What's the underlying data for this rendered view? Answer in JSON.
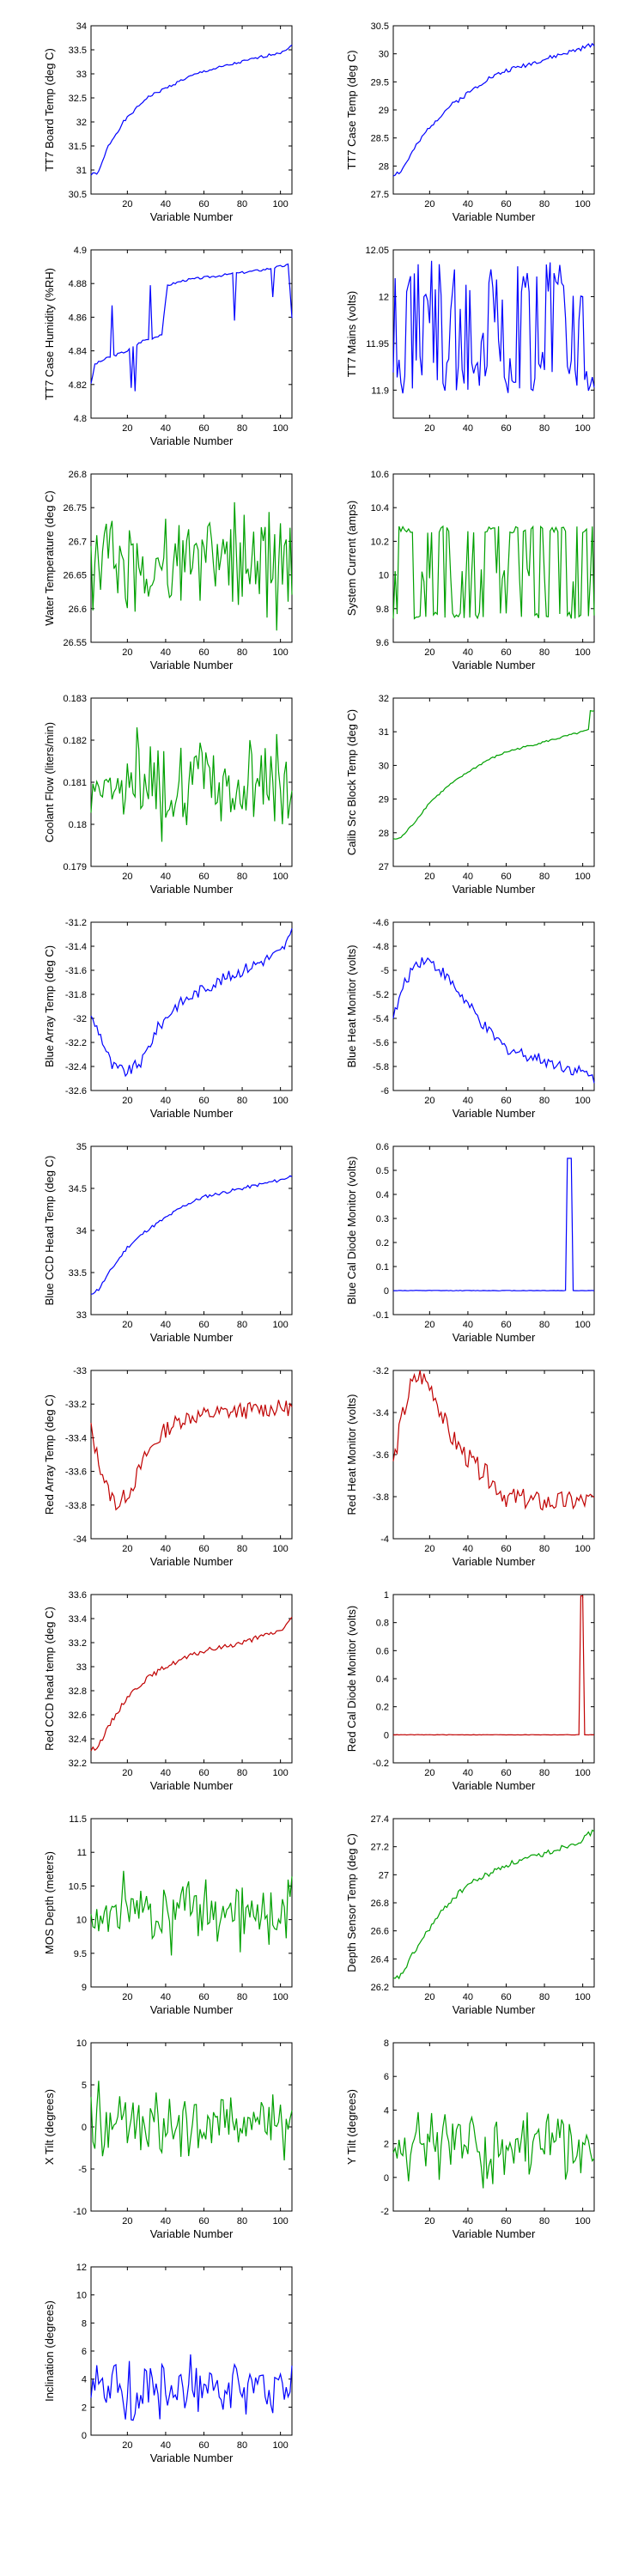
{
  "chart_data": [
    {
      "type": "line",
      "xlabel": "Variable Number",
      "ylabel": "TT7 Board Temp (deg C)",
      "ylim": [
        30.5,
        34
      ],
      "yticks": [
        "30.5",
        "31",
        "31.5",
        "32",
        "32.5",
        "33",
        "33.5",
        "34"
      ],
      "xlim": [
        1,
        106
      ],
      "xticks": [
        "20",
        "40",
        "60",
        "80",
        "100"
      ],
      "color": "#0000ff",
      "gen": {
        "kind": "trend",
        "pts": [
          [
            1,
            30.9
          ],
          [
            5,
            30.95
          ],
          [
            10,
            31.5
          ],
          [
            18,
            32.0
          ],
          [
            30,
            32.5
          ],
          [
            40,
            32.7
          ],
          [
            50,
            32.9
          ],
          [
            60,
            33.05
          ],
          [
            80,
            33.25
          ],
          [
            100,
            33.45
          ],
          [
            106,
            33.58
          ]
        ],
        "noise": 0.03,
        "seed": 1
      }
    },
    {
      "type": "line",
      "xlabel": "Variable Number",
      "ylabel": "TT7 Case Temp (deg C)",
      "ylim": [
        27.5,
        30.5
      ],
      "yticks": [
        "27.5",
        "28",
        "28.5",
        "29",
        "29.5",
        "30",
        "30.5"
      ],
      "xlim": [
        1,
        106
      ],
      "xticks": [
        "20",
        "40",
        "60",
        "80",
        "100"
      ],
      "color": "#0000ff",
      "gen": {
        "kind": "trend",
        "pts": [
          [
            1,
            27.85
          ],
          [
            5,
            27.9
          ],
          [
            12,
            28.3
          ],
          [
            20,
            28.7
          ],
          [
            30,
            29.05
          ],
          [
            40,
            29.3
          ],
          [
            50,
            29.55
          ],
          [
            60,
            29.7
          ],
          [
            80,
            29.9
          ],
          [
            100,
            30.1
          ],
          [
            106,
            30.18
          ]
        ],
        "noise": 0.04,
        "seed": 2
      }
    },
    {
      "type": "line",
      "xlabel": "Variable Number",
      "ylabel": "TT7 Case Humidity (%RH)",
      "ylim": [
        4.8,
        4.9
      ],
      "yticks": [
        "4.8",
        "4.82",
        "4.84",
        "4.86",
        "4.88",
        "4.9"
      ],
      "xlim": [
        1,
        106
      ],
      "xticks": [
        "20",
        "40",
        "60",
        "80",
        "100"
      ],
      "color": "#0000ff",
      "gen": {
        "kind": "trend",
        "pts": [
          [
            1,
            4.82
          ],
          [
            3,
            4.832
          ],
          [
            10,
            4.836
          ],
          [
            20,
            4.84
          ],
          [
            28,
            4.846
          ],
          [
            34,
            4.848
          ],
          [
            38,
            4.85
          ],
          [
            41,
            4.879
          ],
          [
            50,
            4.882
          ],
          [
            70,
            4.885
          ],
          [
            90,
            4.888
          ],
          [
            104,
            4.891
          ],
          [
            106,
            4.86
          ]
        ],
        "noise": 0.0007,
        "seed": 3,
        "spikes": [
          [
            12,
            4.867
          ],
          [
            22,
            4.818
          ],
          [
            24,
            4.816
          ],
          [
            32,
            4.879
          ],
          [
            76,
            4.858
          ],
          [
            96,
            4.872
          ]
        ]
      }
    },
    {
      "type": "line",
      "xlabel": "",
      "ylabel": "TT7 Mains  (volts)",
      "ylim": [
        11.87,
        12.05
      ],
      "yticks": [
        "11.9",
        "11.95",
        "12",
        "12.05"
      ],
      "xlim": [
        1,
        106
      ],
      "xticks": [
        "20",
        "40",
        "60",
        "80",
        "100"
      ],
      "color": "#0000ff",
      "gen": {
        "kind": "bimodal",
        "lo": 11.915,
        "hi": 12.02,
        "mid": 11.97,
        "noise": 0.04,
        "seed": 4
      }
    },
    {
      "type": "line",
      "xlabel": "Variable Number",
      "ylabel": "Water Temperature (deg C)",
      "ylim": [
        26.55,
        26.8
      ],
      "yticks": [
        "26.55",
        "26.6",
        "26.65",
        "26.7",
        "26.75",
        "26.8"
      ],
      "xlim": [
        1,
        106
      ],
      "xticks": [
        "20",
        "40",
        "60",
        "80",
        "100"
      ],
      "color": "#00a000",
      "gen": {
        "kind": "noise",
        "mean": 26.665,
        "amp": 0.055,
        "seed": 5
      }
    },
    {
      "type": "line",
      "xlabel": "Variable Number",
      "ylabel": "System Current (amps)",
      "ylim": [
        9.6,
        10.6
      ],
      "yticks": [
        "9.6",
        "9.8",
        "10",
        "10.2",
        "10.4",
        "10.6"
      ],
      "xlim": [
        1,
        106
      ],
      "xticks": [
        "20",
        "40",
        "60",
        "80",
        "100"
      ],
      "color": "#00a000",
      "gen": {
        "kind": "bimodal",
        "lo": 9.76,
        "hi": 10.27,
        "mid": 10.0,
        "noise": 0.04,
        "seed": 6
      }
    },
    {
      "type": "line",
      "xlabel": "Variable Number",
      "ylabel": "Coolant Flow (liters/min)",
      "ylim": [
        0.179,
        0.183
      ],
      "yticks": [
        "0.179",
        "0.18",
        "0.181",
        "0.182",
        "0.183"
      ],
      "xlim": [
        1,
        106
      ],
      "xticks": [
        "20",
        "40",
        "60",
        "80",
        "100"
      ],
      "color": "#00a000",
      "gen": {
        "kind": "noise",
        "mean": 0.181,
        "amp": 0.0008,
        "seed": 7
      }
    },
    {
      "type": "line",
      "xlabel": "Variable Number",
      "ylabel": "Calib Src Block Temp (deg C)",
      "ylim": [
        27,
        32
      ],
      "yticks": [
        "27",
        "28",
        "29",
        "30",
        "31",
        "32"
      ],
      "xlim": [
        1,
        106
      ],
      "xticks": [
        "20",
        "40",
        "60",
        "80",
        "100"
      ],
      "color": "#00a000",
      "gen": {
        "kind": "trend",
        "pts": [
          [
            1,
            27.8
          ],
          [
            5,
            27.85
          ],
          [
            12,
            28.3
          ],
          [
            20,
            28.9
          ],
          [
            30,
            29.4
          ],
          [
            40,
            29.8
          ],
          [
            50,
            30.15
          ],
          [
            60,
            30.4
          ],
          [
            80,
            30.7
          ],
          [
            100,
            31.0
          ],
          [
            103,
            31.05
          ],
          [
            104,
            31.6
          ],
          [
            106,
            31.6
          ]
        ],
        "noise": 0.03,
        "seed": 8
      }
    },
    {
      "type": "line",
      "xlabel": "Variable Number",
      "ylabel": "Blue Array Temp (deg C)",
      "ylim": [
        -32.6,
        -31.2
      ],
      "yticks": [
        "-32.6",
        "-32.4",
        "-32.2",
        "-32",
        "-31.8",
        "-31.6",
        "-31.4",
        "-31.2"
      ],
      "xlim": [
        1,
        106
      ],
      "xticks": [
        "20",
        "40",
        "60",
        "80",
        "100"
      ],
      "color": "#0000ff",
      "gen": {
        "kind": "trend",
        "pts": [
          [
            1,
            -32.0
          ],
          [
            5,
            -32.1
          ],
          [
            12,
            -32.4
          ],
          [
            20,
            -32.45
          ],
          [
            28,
            -32.35
          ],
          [
            35,
            -32.1
          ],
          [
            45,
            -31.9
          ],
          [
            60,
            -31.75
          ],
          [
            80,
            -31.6
          ],
          [
            100,
            -31.45
          ],
          [
            106,
            -31.3
          ]
        ],
        "noise": 0.05,
        "seed": 9
      }
    },
    {
      "type": "line",
      "xlabel": "Variable Number",
      "ylabel": "Blue Heat Monitor (volts)",
      "ylim": [
        -6,
        -4.6
      ],
      "yticks": [
        "-6",
        "-5.8",
        "-5.6",
        "-5.4",
        "-5.2",
        "-5",
        "-4.8",
        "-4.6"
      ],
      "xlim": [
        1,
        106
      ],
      "xticks": [
        "20",
        "40",
        "60",
        "80",
        "100"
      ],
      "color": "#0000ff",
      "gen": {
        "kind": "trend",
        "pts": [
          [
            1,
            -5.4
          ],
          [
            6,
            -5.15
          ],
          [
            12,
            -4.95
          ],
          [
            18,
            -4.9
          ],
          [
            26,
            -5.0
          ],
          [
            36,
            -5.2
          ],
          [
            50,
            -5.5
          ],
          [
            60,
            -5.65
          ],
          [
            80,
            -5.75
          ],
          [
            100,
            -5.85
          ],
          [
            106,
            -5.9
          ]
        ],
        "noise": 0.05,
        "seed": 10
      }
    },
    {
      "type": "line",
      "xlabel": "Variable Number",
      "ylabel": "Blue CCD Head Temp (deg C)",
      "ylim": [
        33,
        35
      ],
      "yticks": [
        "33",
        "33.5",
        "34",
        "34.5",
        "35"
      ],
      "xlim": [
        1,
        106
      ],
      "xticks": [
        "20",
        "40",
        "60",
        "80",
        "100"
      ],
      "color": "#0000ff",
      "gen": {
        "kind": "trend",
        "pts": [
          [
            1,
            33.25
          ],
          [
            5,
            33.3
          ],
          [
            12,
            33.55
          ],
          [
            20,
            33.8
          ],
          [
            30,
            34.0
          ],
          [
            40,
            34.15
          ],
          [
            50,
            34.3
          ],
          [
            60,
            34.4
          ],
          [
            80,
            34.5
          ],
          [
            100,
            34.6
          ],
          [
            106,
            34.65
          ]
        ],
        "noise": 0.02,
        "seed": 11
      }
    },
    {
      "type": "line",
      "xlabel": "Variable Number",
      "ylabel": "Blue Cal Diode Monitor (volts)",
      "ylim": [
        -0.1,
        0.6
      ],
      "yticks": [
        "-0.1",
        "0",
        "0.1",
        "0.2",
        "0.3",
        "0.4",
        "0.5",
        "0.6"
      ],
      "xlim": [
        1,
        106
      ],
      "xticks": [
        "20",
        "40",
        "60",
        "80",
        "100"
      ],
      "color": "#0000ff",
      "gen": {
        "kind": "pulse",
        "base": 0.0,
        "peak": 0.55,
        "x0": 91.5,
        "x1": 94.5,
        "noise": 0.002,
        "seed": 12
      }
    },
    {
      "type": "line",
      "xlabel": "Variable Number",
      "ylabel": "Red Array Temp (deg C)",
      "ylim": [
        -34,
        -33
      ],
      "yticks": [
        "-34",
        "-33.8",
        "-33.6",
        "-33.4",
        "-33.2",
        "-33"
      ],
      "xlim": [
        1,
        106
      ],
      "xticks": [
        "20",
        "40",
        "60",
        "80",
        "100"
      ],
      "color": "#c00000",
      "gen": {
        "kind": "trend",
        "pts": [
          [
            1,
            -33.35
          ],
          [
            4,
            -33.5
          ],
          [
            10,
            -33.72
          ],
          [
            15,
            -33.8
          ],
          [
            22,
            -33.7
          ],
          [
            30,
            -33.5
          ],
          [
            40,
            -33.35
          ],
          [
            50,
            -33.28
          ],
          [
            70,
            -33.25
          ],
          [
            90,
            -33.23
          ],
          [
            106,
            -33.22
          ]
        ],
        "noise": 0.05,
        "seed": 13
      }
    },
    {
      "type": "line",
      "xlabel": "Variable Number",
      "ylabel": "Red Heat Monitor (volts)",
      "ylim": [
        -4,
        -3.2
      ],
      "yticks": [
        "-4",
        "-3.8",
        "-3.6",
        "-3.4",
        "-3.2"
      ],
      "xlim": [
        1,
        106
      ],
      "xticks": [
        "20",
        "40",
        "60",
        "80",
        "100"
      ],
      "color": "#c00000",
      "gen": {
        "kind": "trend",
        "pts": [
          [
            1,
            -3.65
          ],
          [
            5,
            -3.45
          ],
          [
            10,
            -3.28
          ],
          [
            15,
            -3.22
          ],
          [
            22,
            -3.3
          ],
          [
            30,
            -3.5
          ],
          [
            40,
            -3.62
          ],
          [
            50,
            -3.7
          ],
          [
            60,
            -3.8
          ],
          [
            80,
            -3.83
          ],
          [
            106,
            -3.82
          ]
        ],
        "noise": 0.05,
        "seed": 14
      }
    },
    {
      "type": "line",
      "xlabel": "Variable Number",
      "ylabel": "Red CCD head temp (deg C)",
      "ylim": [
        32.2,
        33.6
      ],
      "yticks": [
        "32.2",
        "32.4",
        "32.6",
        "32.8",
        "33",
        "33.2",
        "33.4",
        "33.6"
      ],
      "xlim": [
        1,
        106
      ],
      "xticks": [
        "20",
        "40",
        "60",
        "80",
        "100"
      ],
      "color": "#c00000",
      "gen": {
        "kind": "trend",
        "pts": [
          [
            1,
            32.3
          ],
          [
            5,
            32.35
          ],
          [
            12,
            32.55
          ],
          [
            20,
            32.75
          ],
          [
            30,
            32.9
          ],
          [
            40,
            33.0
          ],
          [
            50,
            33.07
          ],
          [
            60,
            33.13
          ],
          [
            80,
            33.2
          ],
          [
            100,
            33.3
          ],
          [
            106,
            33.4
          ]
        ],
        "noise": 0.02,
        "seed": 15
      }
    },
    {
      "type": "line",
      "xlabel": "Variable Number",
      "ylabel": "Red Cal Diode Monitor (volts)",
      "ylim": [
        -0.2,
        1
      ],
      "yticks": [
        "-0.2",
        "0",
        "0.2",
        "0.4",
        "0.6",
        "0.8",
        "1"
      ],
      "xlim": [
        1,
        106
      ],
      "xticks": [
        "20",
        "40",
        "60",
        "80",
        "100"
      ],
      "color": "#c00000",
      "gen": {
        "kind": "pulse",
        "base": 0.0,
        "peak": 0.99,
        "x0": 98.5,
        "x1": 100.5,
        "noise": 0.003,
        "seed": 16
      }
    },
    {
      "type": "line",
      "xlabel": "Variable Number",
      "ylabel": "MOS Depth  (meters)",
      "ylim": [
        9,
        11.5
      ],
      "yticks": [
        "9",
        "9.5",
        "10",
        "10.5",
        "11",
        "11.5"
      ],
      "xlim": [
        1,
        106
      ],
      "xticks": [
        "20",
        "40",
        "60",
        "80",
        "100"
      ],
      "color": "#00a000",
      "gen": {
        "kind": "noise",
        "mean": 10.15,
        "amp": 0.4,
        "seed": 17
      }
    },
    {
      "type": "line",
      "xlabel": "Variable Number",
      "ylabel": "Depth Sensor Temp (deg C)",
      "ylim": [
        26.2,
        27.4
      ],
      "yticks": [
        "26.2",
        "26.4",
        "26.6",
        "26.8",
        "27",
        "27.2",
        "27.4"
      ],
      "xlim": [
        1,
        106
      ],
      "xticks": [
        "20",
        "40",
        "60",
        "80",
        "100"
      ],
      "color": "#00a000",
      "gen": {
        "kind": "trend",
        "pts": [
          [
            1,
            26.25
          ],
          [
            5,
            26.28
          ],
          [
            12,
            26.45
          ],
          [
            20,
            26.62
          ],
          [
            30,
            26.8
          ],
          [
            40,
            26.93
          ],
          [
            50,
            27.0
          ],
          [
            60,
            27.07
          ],
          [
            80,
            27.15
          ],
          [
            100,
            27.25
          ],
          [
            106,
            27.32
          ]
        ],
        "noise": 0.02,
        "seed": 18
      }
    },
    {
      "type": "line",
      "xlabel": "Variable Number",
      "ylabel": "X Tilt  (degrees)",
      "ylim": [
        -10,
        10
      ],
      "yticks": [
        "-10",
        "-5",
        "0",
        "5",
        "10"
      ],
      "xlim": [
        1,
        106
      ],
      "xticks": [
        "20",
        "40",
        "60",
        "80",
        "100"
      ],
      "color": "#00a000",
      "gen": {
        "kind": "noise",
        "mean": 0.5,
        "amp": 3.0,
        "seed": 19
      }
    },
    {
      "type": "line",
      "xlabel": "Variable Number",
      "ylabel": "Y Tilt  (degrees)",
      "ylim": [
        -2,
        8
      ],
      "yticks": [
        "-2",
        "0",
        "2",
        "4",
        "6",
        "8"
      ],
      "xlim": [
        1,
        106
      ],
      "xticks": [
        "20",
        "40",
        "60",
        "80",
        "100"
      ],
      "color": "#00a000",
      "gen": {
        "kind": "noise",
        "mean": 2.0,
        "amp": 1.6,
        "seed": 20
      }
    },
    {
      "type": "line",
      "xlabel": "Variable Number",
      "ylabel": "Inclination  (degrees)",
      "ylim": [
        0,
        12
      ],
      "yticks": [
        "0",
        "2",
        "4",
        "6",
        "8",
        "10",
        "12"
      ],
      "xlim": [
        1,
        106
      ],
      "xticks": [
        "20",
        "40",
        "60",
        "80",
        "100"
      ],
      "color": "#0000ff",
      "gen": {
        "kind": "noise",
        "mean": 3.3,
        "amp": 1.6,
        "seed": 21
      }
    }
  ]
}
